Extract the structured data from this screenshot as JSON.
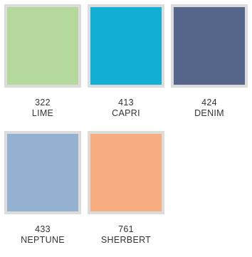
{
  "swatches": [
    {
      "code": "322",
      "name": "LIME",
      "color": "#b5d89d"
    },
    {
      "code": "413",
      "name": "CAPRI",
      "color": "#13aed3"
    },
    {
      "code": "424",
      "name": "DENIM",
      "color": "#56658a"
    },
    {
      "code": "433",
      "name": "NEPTUNE",
      "color": "#94b1d1"
    },
    {
      "code": "761",
      "name": "SHERBERT",
      "color": "#f8ad80"
    }
  ]
}
